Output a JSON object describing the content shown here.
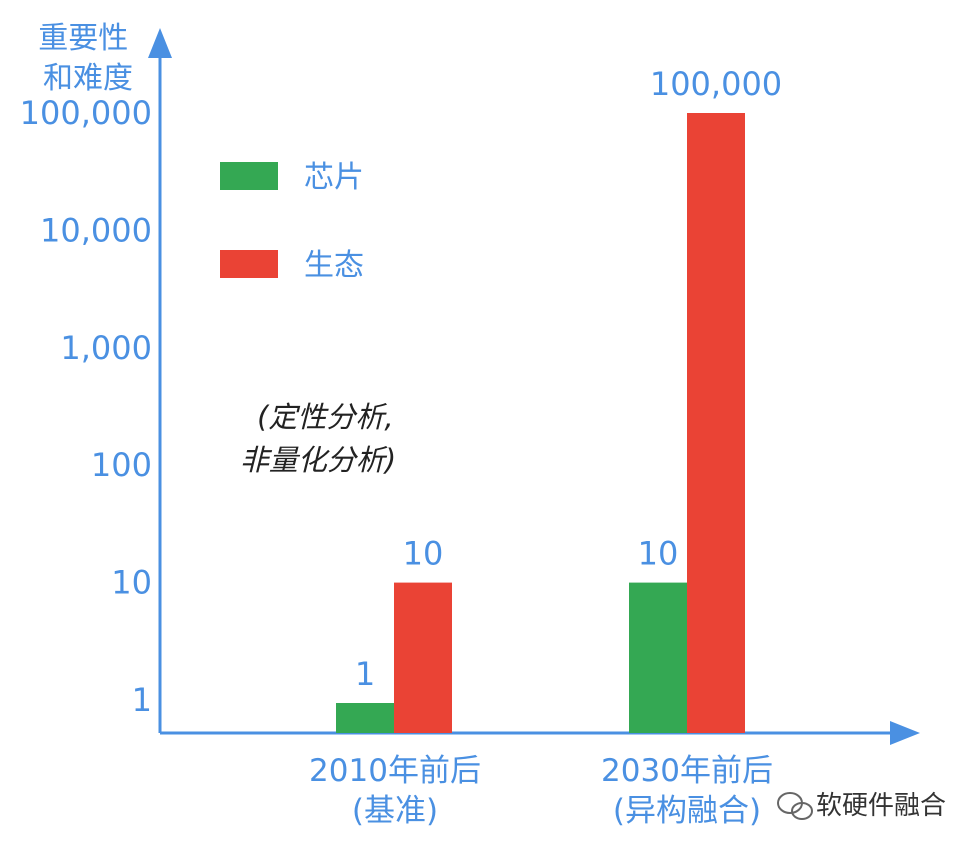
{
  "chart_data": {
    "type": "bar",
    "ylabel": [
      "重要性",
      "和难度"
    ],
    "categories": [
      [
        "2010年前后",
        "(基准)"
      ],
      [
        "2030年前后",
        "(异构融合)"
      ]
    ],
    "yscale": "log",
    "yticks": [
      "1",
      "10",
      "100",
      "1,000",
      "10,000",
      "100,000"
    ],
    "series": [
      {
        "name": "芯片",
        "color": "#34A853",
        "values": [
          1,
          10
        ],
        "labels": [
          "1",
          "10"
        ]
      },
      {
        "name": "生态",
        "color": "#EA4335",
        "values": [
          10,
          100000
        ],
        "labels": [
          "10",
          "100,000"
        ]
      }
    ],
    "annotation": [
      "(定性分析,",
      "非量化分析)"
    ],
    "axis_color": "#4A90E2",
    "legend_position": "top-left"
  },
  "watermark": "软硬件融合"
}
